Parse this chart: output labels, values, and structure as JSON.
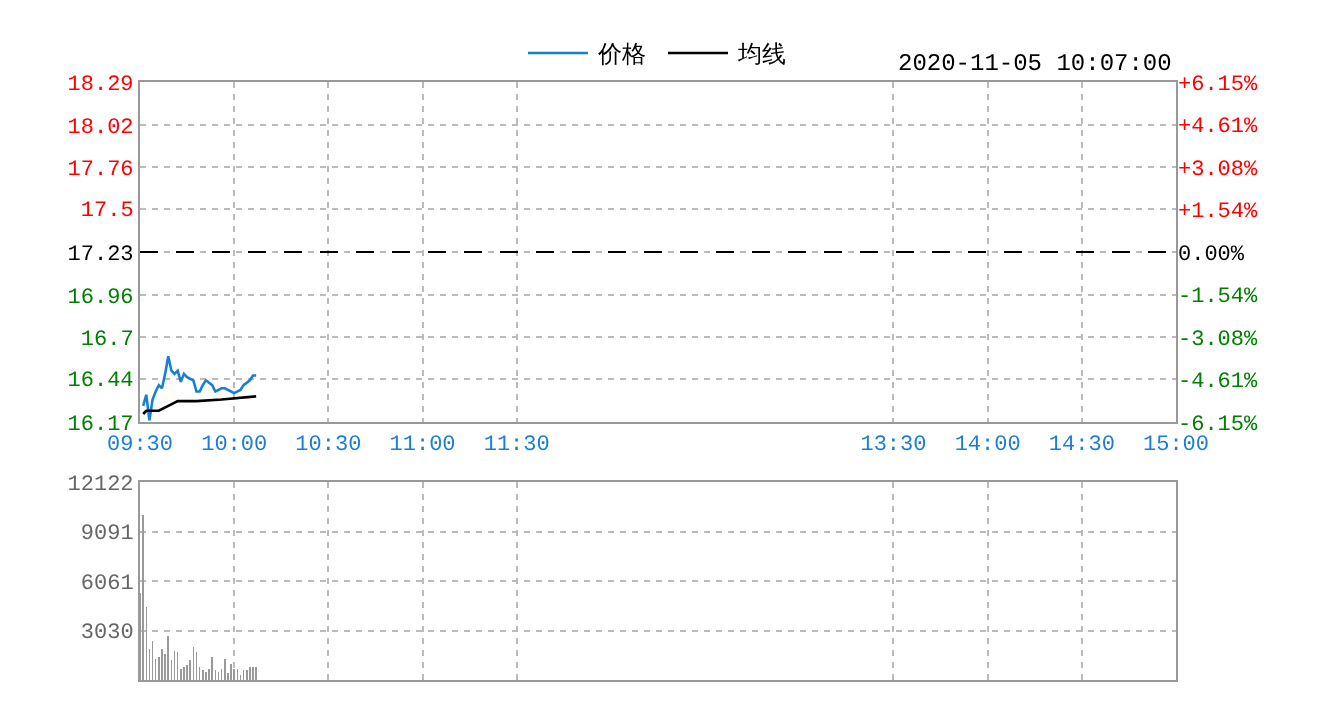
{
  "chart_data": [
    {
      "type": "line",
      "annotations": [
        "2020-11-05 10:07:00"
      ],
      "legend": "top",
      "grid": true,
      "xlim": [
        "2020-11-05T09:30",
        "2020-11-05T15:00"
      ],
      "xticks": [
        {
          "value": "2020-11-05T09:30",
          "label": "09:30"
        },
        {
          "value": "2020-11-05T10:00",
          "label": "10:00"
        },
        {
          "value": "2020-11-05T10:30",
          "label": "10:30"
        },
        {
          "value": "2020-11-05T11:00",
          "label": "11:00"
        },
        {
          "value": "2020-11-05T11:30",
          "label": "11:30"
        },
        {
          "value": "2020-11-05T13:30",
          "label": "13:30"
        },
        {
          "value": "2020-11-05T14:00",
          "label": "14:00"
        },
        {
          "value": "2020-11-05T14:30",
          "label": "14:30"
        },
        {
          "value": "2020-11-05T15:00",
          "label": "15:00"
        }
      ],
      "ylim": [
        16.17,
        18.29
      ],
      "yticks": [
        16.17,
        16.44,
        16.7,
        16.96,
        17.23,
        17.5,
        17.76,
        18.02,
        18.29
      ],
      "y2lim": [
        -6.15,
        6.15
      ],
      "y2ticks": [
        {
          "value": -6.15,
          "label": "-6.15%"
        },
        {
          "value": -4.61,
          "label": "-4.61%"
        },
        {
          "value": -3.08,
          "label": "-3.08%"
        },
        {
          "value": -1.54,
          "label": "-1.54%"
        },
        {
          "value": 0,
          "label": "0.00%"
        },
        {
          "value": 1.54,
          "label": "+1.54%"
        },
        {
          "value": 3.08,
          "label": "+3.08%"
        },
        {
          "value": 4.61,
          "label": "+4.61%"
        },
        {
          "value": 6.15,
          "label": "+6.15%"
        }
      ],
      "ref_lines": [
        {
          "axis": "y",
          "value": 17.23,
          "color": "#000000",
          "line_style": "dashed"
        }
      ],
      "series": [
        {
          "name": "价格",
          "color": "#1a7fd4",
          "x": [
            "2020-11-05T09:31",
            "2020-11-05T09:32",
            "2020-11-05T09:33",
            "2020-11-05T09:34",
            "2020-11-05T09:35",
            "2020-11-05T09:36",
            "2020-11-05T09:37",
            "2020-11-05T09:38",
            "2020-11-05T09:39",
            "2020-11-05T09:40",
            "2020-11-05T09:41",
            "2020-11-05T09:42",
            "2020-11-05T09:43",
            "2020-11-05T09:44",
            "2020-11-05T09:45",
            "2020-11-05T09:47",
            "2020-11-05T09:48",
            "2020-11-05T09:49",
            "2020-11-05T09:50",
            "2020-11-05T09:51",
            "2020-11-05T09:53",
            "2020-11-05T09:54",
            "2020-11-05T09:56",
            "2020-11-05T09:57",
            "2020-11-05T09:59",
            "2020-11-05T10:00",
            "2020-11-05T10:02",
            "2020-11-05T10:03",
            "2020-11-05T10:05",
            "2020-11-05T10:06",
            "2020-11-05T10:07"
          ],
          "values": [
            16.27,
            16.34,
            16.18,
            16.31,
            16.36,
            16.4,
            16.38,
            16.47,
            16.58,
            16.49,
            16.47,
            16.49,
            16.42,
            16.47,
            16.45,
            16.43,
            16.36,
            16.36,
            16.4,
            16.43,
            16.4,
            16.36,
            16.38,
            16.38,
            16.36,
            16.35,
            16.37,
            16.4,
            16.43,
            16.46,
            16.46
          ]
        },
        {
          "name": "均线",
          "color": "#000000",
          "x": [
            "2020-11-05T09:31",
            "2020-11-05T09:32",
            "2020-11-05T09:36",
            "2020-11-05T09:39",
            "2020-11-05T09:42",
            "2020-11-05T09:48",
            "2020-11-05T09:56",
            "2020-11-05T10:07"
          ],
          "values": [
            16.22,
            16.24,
            16.24,
            16.27,
            16.3,
            16.3,
            16.31,
            16.33
          ]
        }
      ]
    },
    {
      "type": "bar",
      "grid": true,
      "tick_labels": "y",
      "xlim": [
        "2020-11-05T09:30",
        "2020-11-05T15:00"
      ],
      "xticks": [
        {
          "value": "2020-11-05T09:30",
          "label": null
        },
        {
          "value": "2020-11-05T10:00",
          "label": null
        },
        {
          "value": "2020-11-05T10:30",
          "label": null
        },
        {
          "value": "2020-11-05T11:00",
          "label": null
        },
        {
          "value": "2020-11-05T11:30",
          "label": null
        },
        {
          "value": "2020-11-05T13:30",
          "label": null
        },
        {
          "value": "2020-11-05T14:00",
          "label": null
        },
        {
          "value": "2020-11-05T14:30",
          "label": null
        },
        {
          "value": "2020-11-05T15:00",
          "label": null
        }
      ],
      "ylim": [
        0,
        12122
      ],
      "yticks": [
        3030,
        6061,
        9091,
        12122
      ],
      "series": [
        {
          "color": "#999999",
          "x": [
            "2020-11-05T09:30",
            "2020-11-05T09:31",
            "2020-11-05T09:32",
            "2020-11-05T09:33",
            "2020-11-05T09:34",
            "2020-11-05T09:35",
            "2020-11-05T09:36",
            "2020-11-05T09:37",
            "2020-11-05T09:38",
            "2020-11-05T09:39",
            "2020-11-05T09:40",
            "2020-11-05T09:41",
            "2020-11-05T09:42",
            "2020-11-05T09:43",
            "2020-11-05T09:44",
            "2020-11-05T09:45",
            "2020-11-05T09:46",
            "2020-11-05T09:47",
            "2020-11-05T09:48",
            "2020-11-05T09:49",
            "2020-11-05T09:50",
            "2020-11-05T09:51",
            "2020-11-05T09:52",
            "2020-11-05T09:53",
            "2020-11-05T09:54",
            "2020-11-05T09:55",
            "2020-11-05T09:56",
            "2020-11-05T09:57",
            "2020-11-05T09:58",
            "2020-11-05T09:59",
            "2020-11-05T10:00",
            "2020-11-05T10:01",
            "2020-11-05T10:02",
            "2020-11-05T10:03",
            "2020-11-05T10:04",
            "2020-11-05T10:05",
            "2020-11-05T10:06",
            "2020-11-05T10:07"
          ],
          "values": [
            5300,
            10100,
            4500,
            1900,
            2400,
            1300,
            1400,
            1900,
            1600,
            2700,
            1200,
            1800,
            1700,
            700,
            800,
            900,
            1200,
            2000,
            1700,
            800,
            600,
            500,
            700,
            1400,
            600,
            500,
            700,
            1300,
            400,
            1000,
            700,
            700,
            300,
            600,
            600,
            800,
            800,
            800
          ]
        }
      ]
    }
  ]
}
